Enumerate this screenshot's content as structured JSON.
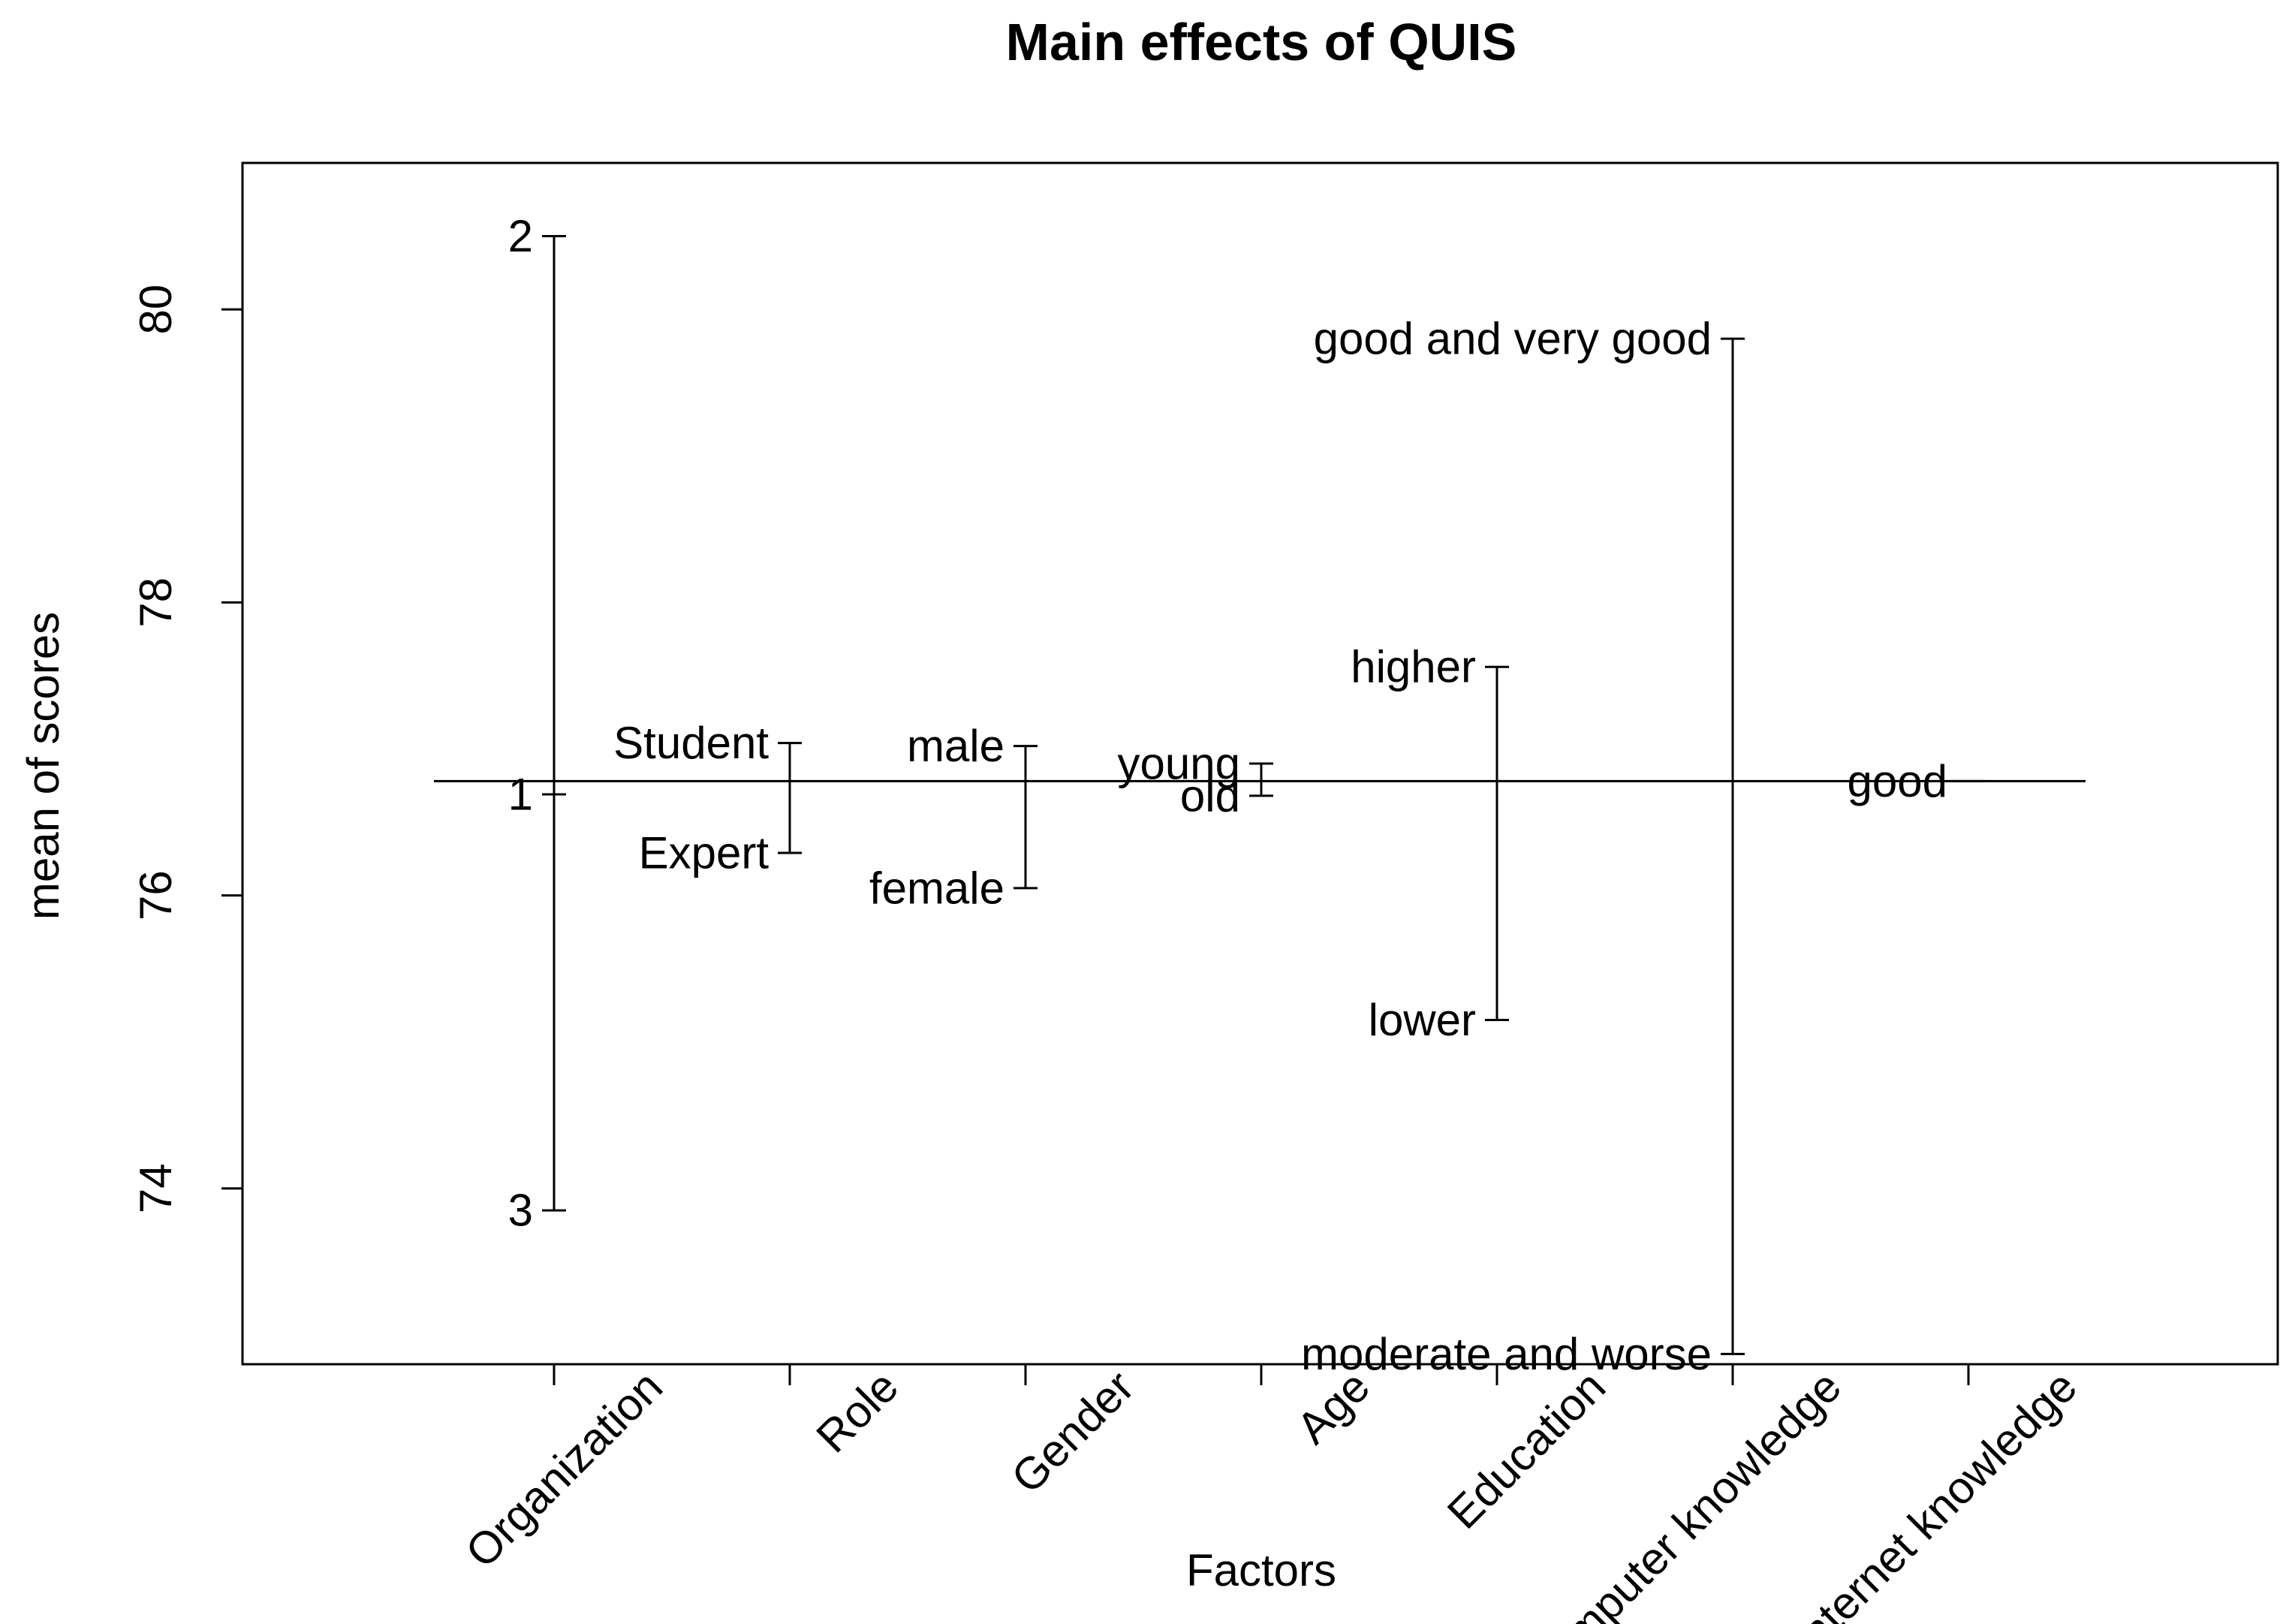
{
  "chart_data": {
    "type": "main-effects",
    "title": "Main effects of QUIS",
    "xlabel": "Factors",
    "ylabel": "mean of scores",
    "ylim": [
      72.8,
      81.0
    ],
    "yticks": [
      74,
      76,
      78,
      80
    ],
    "grand_mean": 76.78,
    "factors": [
      {
        "name": "Organization",
        "levels": [
          {
            "label": "2",
            "value": 80.5
          },
          {
            "label": "1",
            "value": 76.69
          },
          {
            "label": "3",
            "value": 73.85
          }
        ]
      },
      {
        "name": "Role",
        "levels": [
          {
            "label": "Student",
            "value": 77.04
          },
          {
            "label": "Expert",
            "value": 76.29
          }
        ]
      },
      {
        "name": "Gender",
        "levels": [
          {
            "label": "male",
            "value": 77.02
          },
          {
            "label": "female",
            "value": 76.05
          }
        ]
      },
      {
        "name": "Age",
        "levels": [
          {
            "label": "young",
            "value": 76.9
          },
          {
            "label": "old",
            "value": 76.68
          }
        ]
      },
      {
        "name": "Education",
        "levels": [
          {
            "label": "higher",
            "value": 77.56
          },
          {
            "label": "lower",
            "value": 75.15
          }
        ]
      },
      {
        "name": "Computer knowledge",
        "levels": [
          {
            "label": "good and very good",
            "value": 79.8
          },
          {
            "label": "moderate and worse",
            "value": 72.87
          }
        ]
      },
      {
        "name": "Internet knowledge",
        "levels": [
          {
            "label": "good",
            "value": 76.78
          }
        ]
      }
    ]
  }
}
